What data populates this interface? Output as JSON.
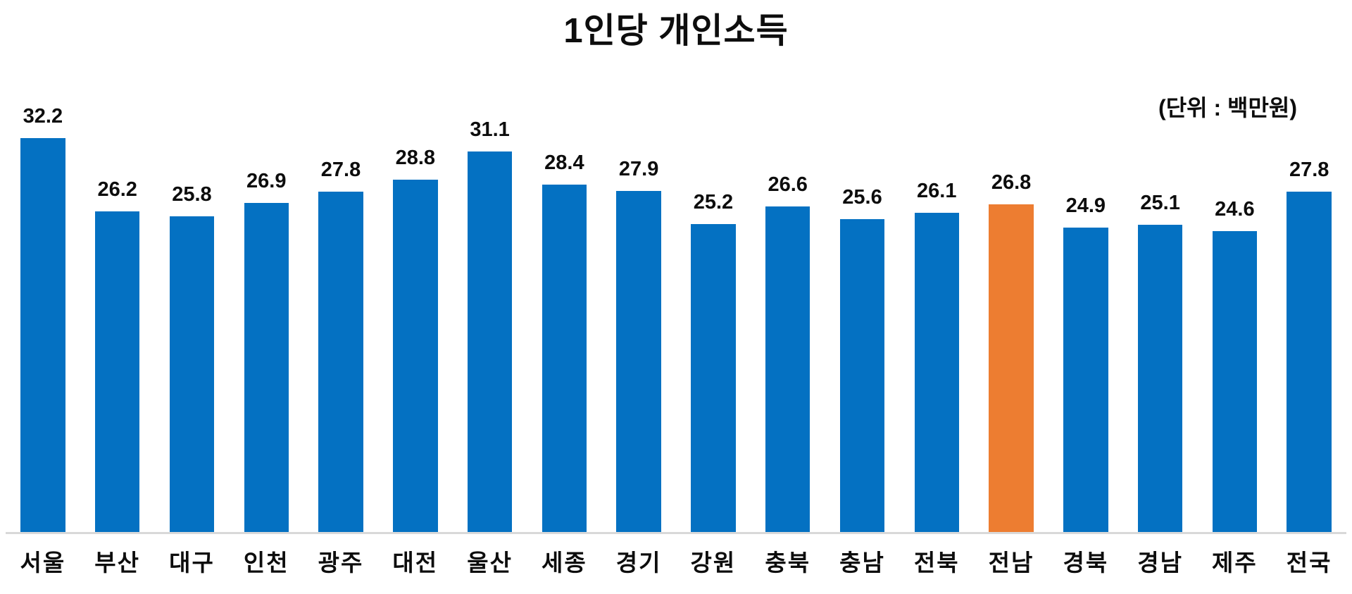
{
  "title": "1인당 개인소득",
  "unit_label": "(단위 : 백만원)",
  "chart_data": {
    "type": "bar",
    "title": "1인당 개인소득",
    "subtitle": "(단위 : 백만원)",
    "categories": [
      "서울",
      "부산",
      "대구",
      "인천",
      "광주",
      "대전",
      "울산",
      "세종",
      "경기",
      "강원",
      "충북",
      "충남",
      "전북",
      "전남",
      "경북",
      "경남",
      "제주",
      "전국"
    ],
    "values": [
      32.2,
      26.2,
      25.8,
      26.9,
      27.8,
      28.8,
      31.1,
      28.4,
      27.9,
      25.2,
      26.6,
      25.6,
      26.1,
      26.8,
      24.9,
      25.1,
      24.6,
      27.8
    ],
    "xlabel": "",
    "ylabel": "",
    "ylim": [
      0,
      34
    ],
    "grid": false,
    "legend": false,
    "data_labels": true,
    "bar_color": "#0471C2",
    "highlight_color": "#ED7D31",
    "highlight_category": "전남",
    "highlight_index": 13,
    "axis_line_color": "#D9D9D9",
    "label_color": "#0D0D0D"
  }
}
